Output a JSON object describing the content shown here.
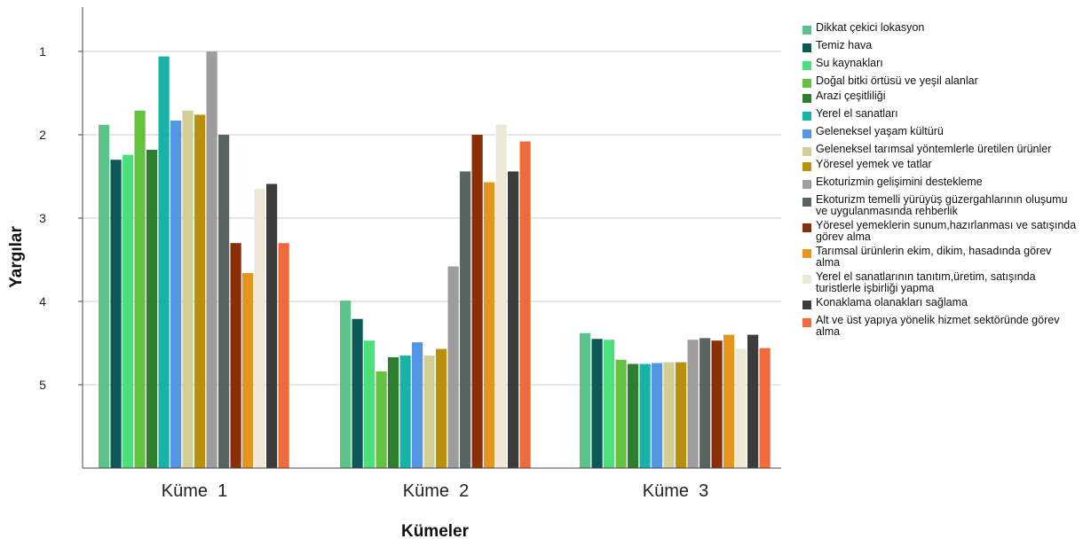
{
  "chart_data": {
    "type": "bar",
    "title": "",
    "xlabel": "Kümeler",
    "ylabel": "Yargılar",
    "ylim": [
      1,
      6
    ],
    "ytick_labels": [
      "1",
      "2",
      "3",
      "4",
      "5"
    ],
    "grid": true,
    "legend_position": "right",
    "categories": [
      "Küme  1",
      "Küme  2",
      "Küme  3"
    ],
    "series": [
      {
        "name": "Dikkat çekici lokasyon",
        "color": "#5cc48a",
        "values": [
          1.88,
          3.99,
          4.38
        ]
      },
      {
        "name": "Temiz hava",
        "color": "#0c5a56",
        "values": [
          2.3,
          4.21,
          4.45
        ]
      },
      {
        "name": "Su kaynakları",
        "color": "#4be07a",
        "values": [
          2.24,
          4.47,
          4.46
        ]
      },
      {
        "name": "Doğal bitki örtüsü ve yeşil alanlar",
        "color": "#63c23f",
        "values": [
          1.71,
          4.84,
          4.7
        ]
      },
      {
        "name": "Arazi çeşitliliği",
        "color": "#2e7d30",
        "values": [
          2.18,
          4.67,
          4.75
        ]
      },
      {
        "name": "Yerel el sanatları",
        "color": "#17b3a6",
        "values": [
          1.06,
          4.65,
          4.75
        ]
      },
      {
        "name": "Geleneksel yaşam kültürü",
        "color": "#5596e4",
        "values": [
          1.83,
          4.49,
          4.74
        ]
      },
      {
        "name": "Geleneksel tarımsal yöntemlerle üretilen ürünler",
        "color": "#d3ce94",
        "values": [
          1.71,
          4.65,
          4.73
        ]
      },
      {
        "name": "Yöresel yemek ve tatlar",
        "color": "#b8900c",
        "values": [
          1.76,
          4.57,
          4.73
        ]
      },
      {
        "name": "Ekoturizmin gelişimini destekleme",
        "color": "#9e9c9c",
        "values": [
          1.0,
          3.58,
          4.46
        ]
      },
      {
        "name": "Ekoturizm temelli yürüyüş güzergahlarının oluşumu  ve uygulanmasında rehberlik",
        "color": "#5a6563",
        "values": [
          2.0,
          2.44,
          4.44
        ]
      },
      {
        "name": "Yöresel yemeklerin sunum,hazırlanması ve satışında görev alma",
        "color": "#893008",
        "values": [
          3.3,
          2.0,
          4.47
        ]
      },
      {
        "name": "Tarımsal ürünlerin ekim, dikim, hasadında görev alma",
        "color": "#e5941d",
        "values": [
          3.66,
          2.57,
          4.4
        ]
      },
      {
        "name": "Yerel el sanatlarının tanıtım,üretim, satışında turistlerle işbirliği yapma",
        "color": "#ece8d5",
        "values": [
          2.65,
          1.88,
          4.57
        ]
      },
      {
        "name": "Konaklama olanakları sağlama",
        "color": "#3c3c3c",
        "values": [
          2.59,
          2.44,
          4.4
        ]
      },
      {
        "name": "Alt ve üst yapıya yönelik hizmet sektöründe görev alma",
        "color": "#f06a3a",
        "values": [
          3.3,
          2.08,
          4.56
        ]
      }
    ]
  }
}
